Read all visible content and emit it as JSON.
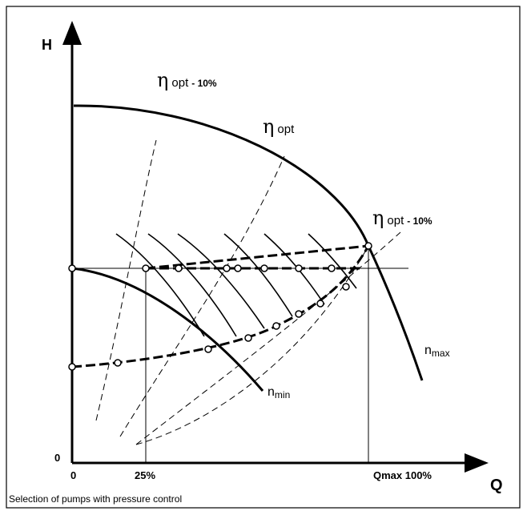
{
  "axes": {
    "y_label": "H",
    "x_label": "Q",
    "y_origin": "0",
    "x_origin": "0",
    "x_mark": "25%",
    "x_max": "Qmax 100%"
  },
  "labels": {
    "eta_left": {
      "symbol": "η",
      "text": "opt",
      "suffix": "- 10%"
    },
    "eta_opt": {
      "symbol": "η",
      "text": "opt"
    },
    "eta_right": {
      "symbol": "η",
      "text": "opt",
      "suffix": "- 10%"
    },
    "n_max": {
      "text": "n",
      "sub": "max"
    },
    "n_min": {
      "text": "n",
      "sub": "min"
    }
  },
  "caption": "Selection of pumps with pressure control"
}
